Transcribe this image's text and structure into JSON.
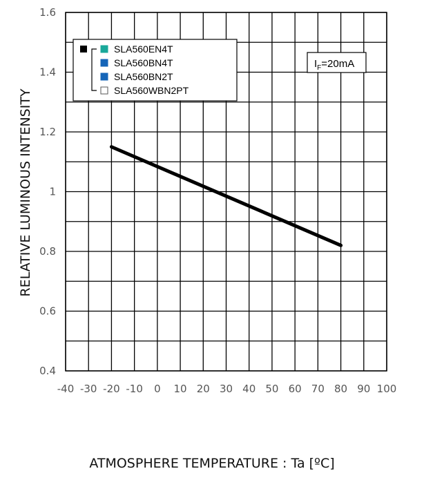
{
  "chart_data": {
    "type": "line",
    "title": "",
    "xlabel": "ATMOSPHERE TEMPERATURE : Ta [ºC]",
    "ylabel": "RELATIVE LUMINOUS INTENSITY",
    "xlim": [
      -40,
      100
    ],
    "ylim": [
      0.4,
      1.6
    ],
    "x_ticks": [
      "-40",
      "-30",
      "-20",
      "-10",
      "0",
      "10",
      "20",
      "30",
      "40",
      "50",
      "60",
      "70",
      "80",
      "90",
      "100"
    ],
    "y_ticks": [
      "0.4",
      "0.6",
      "0.8",
      "1",
      "1.2",
      "1.4",
      "1.6"
    ],
    "grid": true,
    "condition": {
      "symbol": "I",
      "subscript": "F",
      "value": "=20mA"
    },
    "legend": {
      "position": "top-left",
      "entries": [
        {
          "label": "SLA560EN4T",
          "color": "#19a89a"
        },
        {
          "label": "SLA560BN4T",
          "color": "#1565b8"
        },
        {
          "label": "SLA560BN2T",
          "color": "#1565b8"
        },
        {
          "label": "SLA560WBN2PT",
          "color": "#ffffff"
        }
      ],
      "group_color": "#000000"
    },
    "series": [
      {
        "color": "#000000",
        "x": [
          -20,
          80
        ],
        "y": [
          1.15,
          0.82
        ]
      }
    ]
  }
}
